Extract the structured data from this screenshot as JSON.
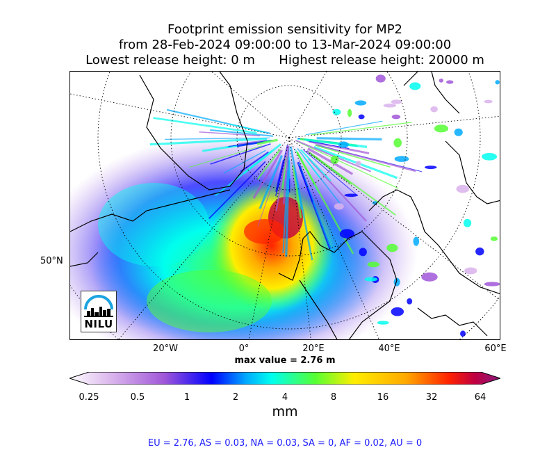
{
  "title": {
    "line1": "Footprint emission sensitivity for MP2",
    "line2": "from 28-Feb-2024 09:00:00 to 13-Mar-2024 09:00:00",
    "line3": "Lowest release height: 0 m      Highest release height: 20000 m"
  },
  "axes": {
    "lat_label": "50°N",
    "lon_labels": [
      "20°W",
      "0°",
      "20°E",
      "40°E",
      "60°E"
    ]
  },
  "max_value": "max value = 2.76 m",
  "colorbar": {
    "ticks": [
      "0.25",
      "0.5",
      "1",
      "2",
      "4",
      "8",
      "16",
      "32",
      "64"
    ],
    "unit": "mm",
    "colors": [
      "#ffffff",
      "#d9b3ec",
      "#a057d8",
      "#0000ff",
      "#00aaff",
      "#00ffee",
      "#55ff33",
      "#ffee00",
      "#ffaa00",
      "#ff2200",
      "#c00040",
      "#8a1a80"
    ]
  },
  "summary": "EU = 2.76,  AS = 0.03,  NA = 0.03,  SA = 0,  AF = 0.02,  AU = 0",
  "logo": {
    "text": "NILU",
    "icon": "nilu-skyline-icon"
  }
}
